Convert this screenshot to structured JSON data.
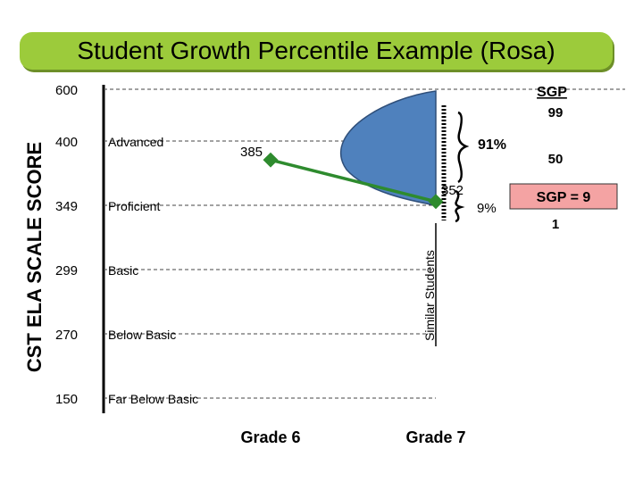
{
  "title": "Student Growth Percentile Example (Rosa)",
  "chart_data": {
    "type": "line",
    "title": "Student Growth Percentile Example (Rosa)",
    "ylabel": "CST ELA SCALE SCORE",
    "y_ticks": [
      {
        "value": 600,
        "label": "600",
        "band": ""
      },
      {
        "value": 400,
        "label": "400",
        "band": "Advanced"
      },
      {
        "value": 349,
        "label": "349",
        "band": "Proficient"
      },
      {
        "value": 299,
        "label": "299",
        "band": "Basic"
      },
      {
        "value": 270,
        "label": "270",
        "band": "Below Basic"
      },
      {
        "value": 150,
        "label": "150",
        "band": "Far Below Basic"
      }
    ],
    "categories": [
      "Grade 6",
      "Grade 7"
    ],
    "series": [
      {
        "values": [
          385,
          352
        ]
      }
    ],
    "point_labels": [
      "385",
      "352"
    ],
    "distribution_label": "Similar Students",
    "sgp_scale": {
      "top_label": "SGP",
      "top_value": "99",
      "mid": "50",
      "bottom": "1"
    },
    "brace_labels": {
      "upper": "91%",
      "lower": "9%"
    },
    "result": "SGP = 9",
    "colors": {
      "title_bg": "#9CCB3B",
      "distribution": "#4F81BD",
      "line": "#2E8B2E",
      "result_bg": "#F4A3A3"
    }
  }
}
